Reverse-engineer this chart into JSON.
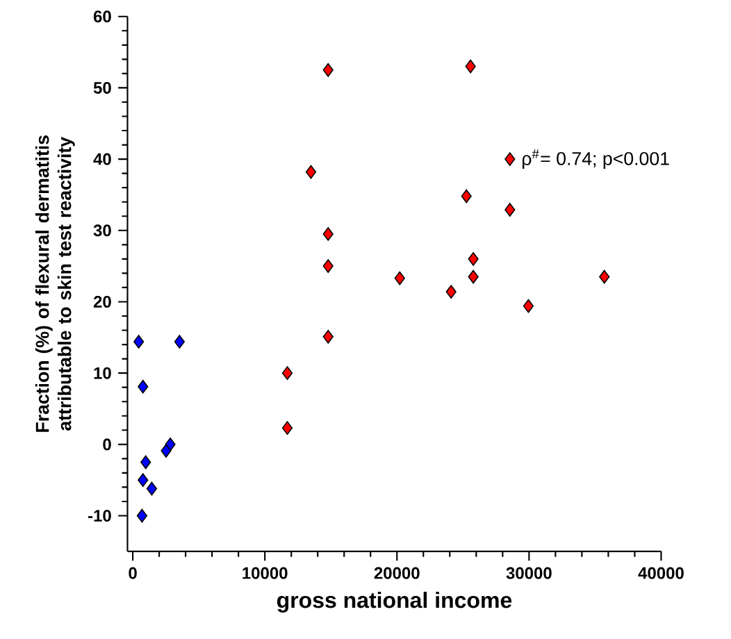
{
  "chart_data": {
    "type": "scatter",
    "xlabel": "gross national income",
    "ylabel": "Fraction (%) of flexural dermatitis attributable to skin test reactivity",
    "xlim": [
      -400,
      40000
    ],
    "ylim": [
      -15,
      60
    ],
    "xticks": [
      0,
      10000,
      20000,
      30000,
      40000
    ],
    "yticks": [
      -10,
      0,
      10,
      20,
      30,
      40,
      50,
      60
    ],
    "marker": "diamond",
    "grid": false,
    "annotations": [
      {
        "text": "ρ$^{#}$= 0.74; p<0.001",
        "x": 28550,
        "y": 40
      }
    ],
    "series": [
      {
        "color": "#ff0000",
        "x": [
          14790,
          25570,
          13490,
          28550,
          25260,
          28550,
          14790,
          14790,
          25780,
          20210,
          25780,
          35700,
          24100,
          29950,
          14790,
          11700,
          11700
        ],
        "values": [
          52.5,
          53,
          38.2,
          40,
          34.8,
          32.9,
          29.5,
          25,
          26,
          23.3,
          23.5,
          23.5,
          21.4,
          19.4,
          15.1,
          10,
          2.3
        ]
      },
      {
        "color": "#0000ff",
        "x": [
          450,
          3540,
          770,
          2840,
          2520,
          980,
          770,
          1440,
          700
        ],
        "values": [
          14.4,
          14.4,
          8.1,
          0,
          -0.9,
          -2.5,
          -5,
          -6.2,
          -10
        ]
      }
    ]
  }
}
